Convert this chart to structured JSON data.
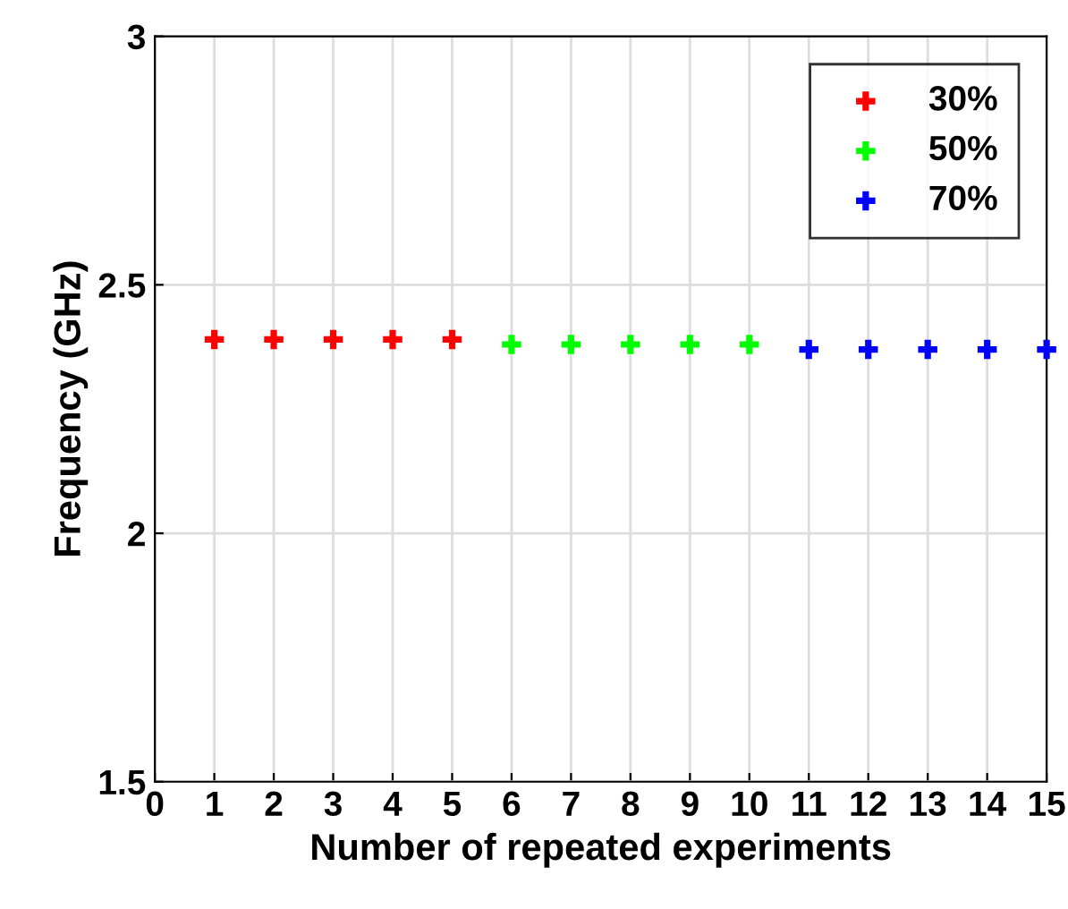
{
  "chart_data": {
    "type": "scatter",
    "xlabel": "Number of repeated experiments",
    "ylabel": "Frequency (GHz)",
    "series": [
      {
        "name": "30%",
        "color": "#ff0000",
        "x": [
          1,
          2,
          3,
          4,
          5
        ],
        "values": [
          2.39,
          2.39,
          2.39,
          2.39,
          2.39
        ]
      },
      {
        "name": "50%",
        "color": "#00ff00",
        "x": [
          6,
          7,
          8,
          9,
          10
        ],
        "values": [
          2.38,
          2.38,
          2.38,
          2.38,
          2.38
        ]
      },
      {
        "name": "70%",
        "color": "#0000ff",
        "x": [
          11,
          12,
          13,
          14,
          15
        ],
        "values": [
          2.37,
          2.37,
          2.37,
          2.37,
          2.37
        ]
      }
    ],
    "xlim": [
      0,
      15
    ],
    "ylim": [
      1.5,
      3
    ],
    "xticks": [
      0,
      1,
      2,
      3,
      4,
      5,
      6,
      7,
      8,
      9,
      10,
      11,
      12,
      13,
      14,
      15
    ],
    "yticks": [
      1.5,
      2,
      {
        "value": 2.5,
        "label": "2.5"
      },
      3
    ],
    "grid": true,
    "legend": "top right",
    "marker": "cross"
  }
}
